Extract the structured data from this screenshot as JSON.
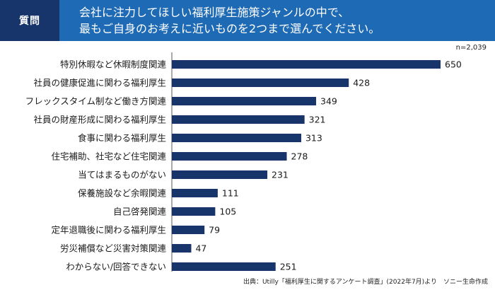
{
  "header": {
    "tag": "質問",
    "question_line1": "会社に注力してほしい福利厚生施策ジャンルの中で、",
    "question_line2": "最もご自身のお考えに近いものを2つまで選んでください。"
  },
  "sample_size": "n=2,039",
  "source": "出典：Utilly「福利厚生に関するアンケート調査」(2022年7月)より　ソニー生命作成",
  "colors": {
    "bar": "#17356b",
    "header": "#1e6ab4",
    "tag": "#17356b"
  },
  "chart_data": {
    "type": "bar",
    "orientation": "horizontal",
    "categories": [
      "特別休暇など休暇制度関連",
      "社員の健康促進に関わる福利厚生",
      "フレックスタイム制など働き方関連",
      "社員の財産形成に関わる福利厚生",
      "食事に関わる福利厚生",
      "住宅補助、社宅など住宅関連",
      "当てはまるものがない",
      "保養施設など余暇関連",
      "自己啓発関連",
      "定年退職後に関わる福利厚生",
      "労災補償など災害対策関連",
      "わからない/回答できない"
    ],
    "values": [
      650,
      428,
      349,
      321,
      313,
      278,
      231,
      111,
      105,
      79,
      47,
      251
    ],
    "xlim": [
      0,
      650
    ],
    "grid": false,
    "legend": "none"
  }
}
